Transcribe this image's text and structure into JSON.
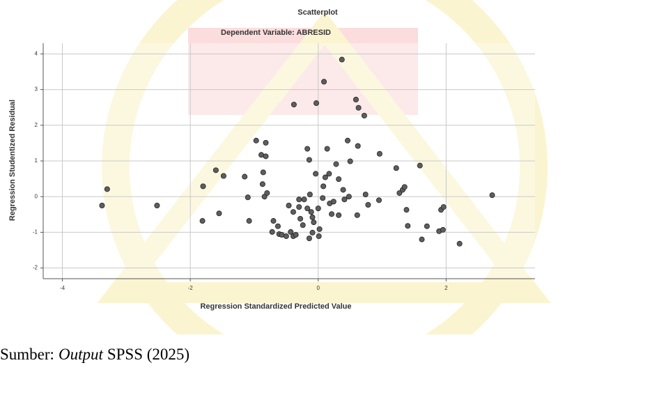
{
  "chart_data": {
    "type": "scatter",
    "title": "Scatterplot",
    "subtitle": "Dependent Variable: ABRESID",
    "xlabel": "Regression Standardized Predicted Value",
    "ylabel": "Regression Studentized Residual",
    "x": [
      -3.38,
      -3.3,
      -2.52,
      -1.8,
      -1.81,
      -1.6,
      -1.55,
      -1.48,
      -1.15,
      -1.1,
      -1.08,
      -0.97,
      -0.82,
      -0.84,
      -0.89,
      -0.82,
      -0.86,
      -0.87,
      -0.8,
      -0.7,
      -0.72,
      -0.63,
      -0.61,
      -0.57,
      -0.5,
      -0.43,
      -0.39,
      -0.35,
      -0.38,
      -0.28,
      -0.3,
      -0.3,
      -0.22,
      -0.17,
      -0.14,
      -0.13,
      -0.11,
      -0.09,
      -0.07,
      -0.14,
      -0.03,
      -0.04,
      0,
      0.02,
      0.01,
      0.07,
      0.08,
      0.09,
      0.11,
      0.14,
      0.17,
      0.18,
      0.21,
      0.24,
      0.28,
      0.32,
      0.32,
      0.37,
      0.39,
      0.41,
      0.46,
      0.48,
      0.5,
      0.59,
      0.62,
      0.63,
      0.61,
      0.72,
      0.74,
      0.78,
      0.96,
      0.95,
      1.22,
      1.27,
      1.32,
      1.35,
      1.38,
      1.4,
      1.59,
      1.62,
      1.7,
      1.89,
      1.92,
      1.96,
      1.95,
      2.21,
      2.72,
      -0.46,
      -0.39,
      -0.24,
      -0.17,
      -0.09
    ],
    "values": [
      -0.25,
      0.21,
      -0.25,
      0.29,
      -0.68,
      0.74,
      -0.47,
      0.58,
      0.56,
      -0.02,
      -0.68,
      1.57,
      1.51,
      0,
      1.17,
      1.13,
      0.68,
      0.35,
      0.1,
      -0.68,
      -0.99,
      -0.83,
      -1.05,
      -1.07,
      -1.11,
      -0.99,
      -1.11,
      -1.07,
      2.58,
      -0.62,
      -0.29,
      -0.08,
      -0.08,
      1.34,
      1.03,
      0.06,
      -0.43,
      -0.58,
      -0.72,
      -1.17,
      2.62,
      0.64,
      -0.33,
      -0.91,
      -1.11,
      -0.04,
      0.29,
      3.22,
      0.54,
      1.34,
      0.64,
      -0.19,
      -0.49,
      -0.14,
      0.91,
      0.49,
      -0.52,
      3.84,
      0.19,
      -0.08,
      1.57,
      0,
      0.99,
      2.72,
      1.42,
      2.49,
      -0.52,
      2.27,
      0.06,
      -0.23,
      1.2,
      -0.1,
      0.8,
      0.1,
      0.19,
      0.27,
      -0.37,
      -0.82,
      0.87,
      -1.2,
      -0.83,
      -0.97,
      -0.37,
      -0.29,
      -0.93,
      -1.32,
      0.04,
      -0.25,
      -0.43,
      -0.8,
      -0.33,
      -1.01
    ],
    "color": "#5e5e5e",
    "xlim": [
      -4.3,
      3.39
    ],
    "xticks": [
      -4,
      -2,
      0,
      2
    ],
    "ylim": [
      -2.3,
      4.3
    ],
    "yticks": [
      -2,
      -1,
      0,
      1,
      2,
      3,
      4
    ],
    "grid": true
  },
  "caption": {
    "prefix": "Sumber:",
    "italic": "Output",
    "suffix": "SPSS (2025)"
  }
}
